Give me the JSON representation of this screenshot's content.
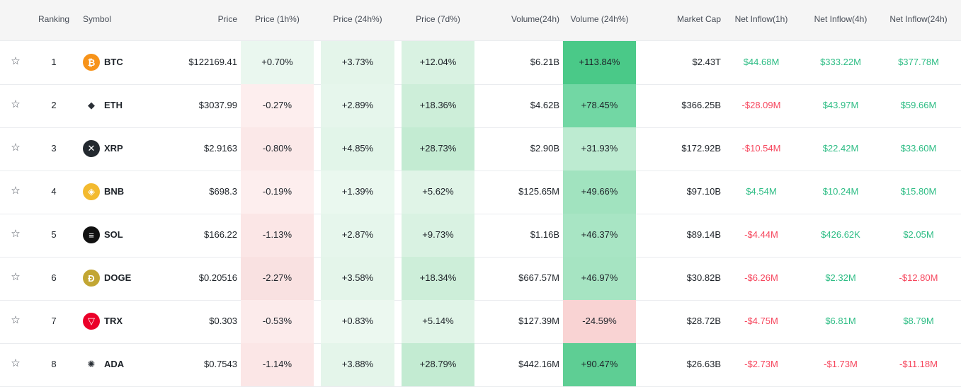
{
  "columns": {
    "ranking": "Ranking",
    "symbol": "Symbol",
    "price": "Price",
    "price_1h": "Price (1h%)",
    "price_24h": "Price (24h%)",
    "price_7d": "Price (7d%)",
    "volume": "Volume(24h)",
    "volume_pct": "Volume (24h%)",
    "market_cap": "Market Cap",
    "inflow_1h": "Net Inflow(1h)",
    "inflow_4h": "Net Inflow(4h)",
    "inflow_24h": "Net Inflow(24h)"
  },
  "colors": {
    "positive_text": "#2ebd85",
    "negative_text": "#f6465d",
    "header_bg": "#f5f5f5"
  },
  "rows": [
    {
      "rank": "1",
      "symbol": "BTC",
      "icon": "bitcoin-icon",
      "icon_color": "#f7931a",
      "glyph": "₿",
      "price": "$122169.41",
      "p1h": "+0.70%",
      "p24h": "+3.73%",
      "p7d": "+12.04%",
      "vol": "$6.21B",
      "volpct": "+113.84%",
      "mcap": "$2.43T",
      "in1h": "$44.68M",
      "in4h": "$333.22M",
      "in24h": "$377.78M",
      "p1h_bg": "#eaf7ef",
      "p24h_bg": "#e4f5ea",
      "p7d_bg": "#d9f2e2",
      "volpct_bg": "#4ac988",
      "in1h_sign": "pos",
      "in4h_sign": "pos",
      "in24h_sign": "pos"
    },
    {
      "rank": "2",
      "symbol": "ETH",
      "icon": "ethereum-icon",
      "icon_color": "#ffffff",
      "glyph": "◆",
      "price": "$3037.99",
      "p1h": "-0.27%",
      "p24h": "+2.89%",
      "p7d": "+18.36%",
      "vol": "$4.62B",
      "volpct": "+78.45%",
      "mcap": "$366.25B",
      "in1h": "-$28.09M",
      "in4h": "$43.97M",
      "in24h": "$59.66M",
      "p1h_bg": "#fdeeee",
      "p24h_bg": "#e6f6ec",
      "p7d_bg": "#cdeed9",
      "volpct_bg": "#72d7a4",
      "in1h_sign": "neg",
      "in4h_sign": "pos",
      "in24h_sign": "pos"
    },
    {
      "rank": "3",
      "symbol": "XRP",
      "icon": "xrp-icon",
      "icon_color": "#23292f",
      "glyph": "✕",
      "price": "$2.9163",
      "p1h": "-0.80%",
      "p24h": "+4.85%",
      "p7d": "+28.73%",
      "vol": "$2.90B",
      "volpct": "+31.93%",
      "mcap": "$172.92B",
      "in1h": "-$10.54M",
      "in4h": "$22.42M",
      "in24h": "$33.60M",
      "p1h_bg": "#fbe8e8",
      "p24h_bg": "#e2f5e9",
      "p7d_bg": "#c3ebd2",
      "volpct_bg": "#bdebd1",
      "in1h_sign": "neg",
      "in4h_sign": "pos",
      "in24h_sign": "pos"
    },
    {
      "rank": "4",
      "symbol": "BNB",
      "icon": "bnb-icon",
      "icon_color": "#f3ba2f",
      "glyph": "◈",
      "price": "$698.3",
      "p1h": "-0.19%",
      "p24h": "+1.39%",
      "p7d": "+5.62%",
      "vol": "$125.65M",
      "volpct": "+49.66%",
      "mcap": "$97.10B",
      "in1h": "$4.54M",
      "in4h": "$10.24M",
      "in24h": "$15.80M",
      "p1h_bg": "#fdeeee",
      "p24h_bg": "#eaf8ef",
      "p7d_bg": "#e0f4e7",
      "volpct_bg": "#a1e3bf",
      "in1h_sign": "pos",
      "in4h_sign": "pos",
      "in24h_sign": "pos"
    },
    {
      "rank": "5",
      "symbol": "SOL",
      "icon": "solana-icon",
      "icon_color": "#111111",
      "glyph": "≡",
      "price": "$166.22",
      "p1h": "-1.13%",
      "p24h": "+2.87%",
      "p7d": "+9.73%",
      "vol": "$1.16B",
      "volpct": "+46.37%",
      "mcap": "$89.14B",
      "in1h": "-$4.44M",
      "in4h": "$426.62K",
      "in24h": "$2.05M",
      "p1h_bg": "#fbe6e6",
      "p24h_bg": "#e6f6ec",
      "p7d_bg": "#d9f2e2",
      "volpct_bg": "#a8e5c4",
      "in1h_sign": "neg",
      "in4h_sign": "pos",
      "in24h_sign": "pos"
    },
    {
      "rank": "6",
      "symbol": "DOGE",
      "icon": "dogecoin-icon",
      "icon_color": "#c2a633",
      "glyph": "Ð",
      "price": "$0.20516",
      "p1h": "-2.27%",
      "p24h": "+3.58%",
      "p7d": "+18.34%",
      "vol": "$667.57M",
      "volpct": "+46.97%",
      "mcap": "$30.82B",
      "in1h": "-$6.26M",
      "in4h": "$2.32M",
      "in24h": "-$12.80M",
      "p1h_bg": "#f9e1e1",
      "p24h_bg": "#e4f5ea",
      "p7d_bg": "#cdeed9",
      "volpct_bg": "#a6e4c2",
      "in1h_sign": "neg",
      "in4h_sign": "pos",
      "in24h_sign": "neg"
    },
    {
      "rank": "7",
      "symbol": "TRX",
      "icon": "tron-icon",
      "icon_color": "#eb0029",
      "glyph": "▽",
      "price": "$0.303",
      "p1h": "-0.53%",
      "p24h": "+0.83%",
      "p7d": "+5.14%",
      "vol": "$127.39M",
      "volpct": "-24.59%",
      "mcap": "$28.72B",
      "in1h": "-$4.75M",
      "in4h": "$6.81M",
      "in24h": "$8.79M",
      "p1h_bg": "#fcebeb",
      "p24h_bg": "#ecf8f0",
      "p7d_bg": "#e0f4e7",
      "volpct_bg": "#f9d3d3",
      "in1h_sign": "neg",
      "in4h_sign": "pos",
      "in24h_sign": "pos"
    },
    {
      "rank": "8",
      "symbol": "ADA",
      "icon": "cardano-icon",
      "icon_color": "#ffffff",
      "glyph": "✺",
      "price": "$0.7543",
      "p1h": "-1.14%",
      "p24h": "+3.88%",
      "p7d": "+28.79%",
      "vol": "$442.16M",
      "volpct": "+90.47%",
      "mcap": "$26.63B",
      "in1h": "-$2.73M",
      "in4h": "-$1.73M",
      "in24h": "-$11.18M",
      "p1h_bg": "#fbe6e6",
      "p24h_bg": "#e4f5ea",
      "p7d_bg": "#c3ebd2",
      "volpct_bg": "#5ece94",
      "in1h_sign": "neg",
      "in4h_sign": "neg",
      "in24h_sign": "neg"
    }
  ]
}
